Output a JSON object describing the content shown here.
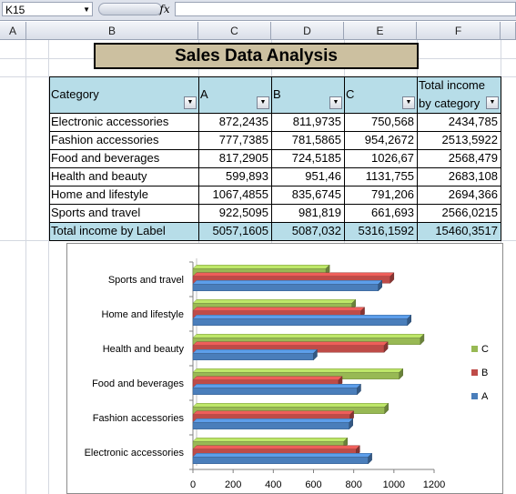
{
  "formula_bar": {
    "name_box": "K15",
    "fx": "fx"
  },
  "columns": [
    "A",
    "B",
    "C",
    "D",
    "E",
    "F"
  ],
  "title": "Sales Data Analysis",
  "table": {
    "headers": [
      "Category",
      "A",
      "B",
      "C",
      "Total income",
      "by category"
    ],
    "rows": [
      [
        "Electronic accessories",
        "872,2435",
        "811,9735",
        "750,568",
        "2434,785"
      ],
      [
        "Fashion accessories",
        "777,7385",
        "781,5865",
        "954,2672",
        "2513,5922"
      ],
      [
        "Food and beverages",
        "817,2905",
        "724,5185",
        "1026,67",
        "2568,479"
      ],
      [
        "Health and beauty",
        "599,893",
        "951,46",
        "1131,755",
        "2683,108"
      ],
      [
        "Home and lifestyle",
        "1067,4855",
        "835,6745",
        "791,206",
        "2694,366"
      ],
      [
        "Sports and travel",
        "922,5095",
        "981,819",
        "661,693",
        "2566,0215"
      ]
    ],
    "total_row": [
      "Total income by Label",
      "5057,1605",
      "5087,032",
      "5316,1592",
      "15460,3517"
    ]
  },
  "chart_data": {
    "type": "bar",
    "orientation": "horizontal",
    "categories": [
      "Electronic accessories",
      "Fashion accessories",
      "Food and beverages",
      "Health and beauty",
      "Home and lifestyle",
      "Sports and travel"
    ],
    "series": [
      {
        "name": "A",
        "color": "#4a7ebb",
        "values": [
          872.2435,
          777.7385,
          817.2905,
          599.893,
          1067.4855,
          922.5095
        ]
      },
      {
        "name": "B",
        "color": "#be4b48",
        "values": [
          811.9735,
          781.5865,
          724.5185,
          951.46,
          835.6745,
          981.819
        ]
      },
      {
        "name": "C",
        "color": "#98b954",
        "values": [
          750.568,
          954.2672,
          1026.67,
          1131.755,
          791.206,
          661.693
        ]
      }
    ],
    "xlim": [
      0,
      1200
    ],
    "xticks": [
      "0",
      "200",
      "400",
      "600",
      "800",
      "1000",
      "1200"
    ],
    "legend": "right",
    "grid": false
  }
}
